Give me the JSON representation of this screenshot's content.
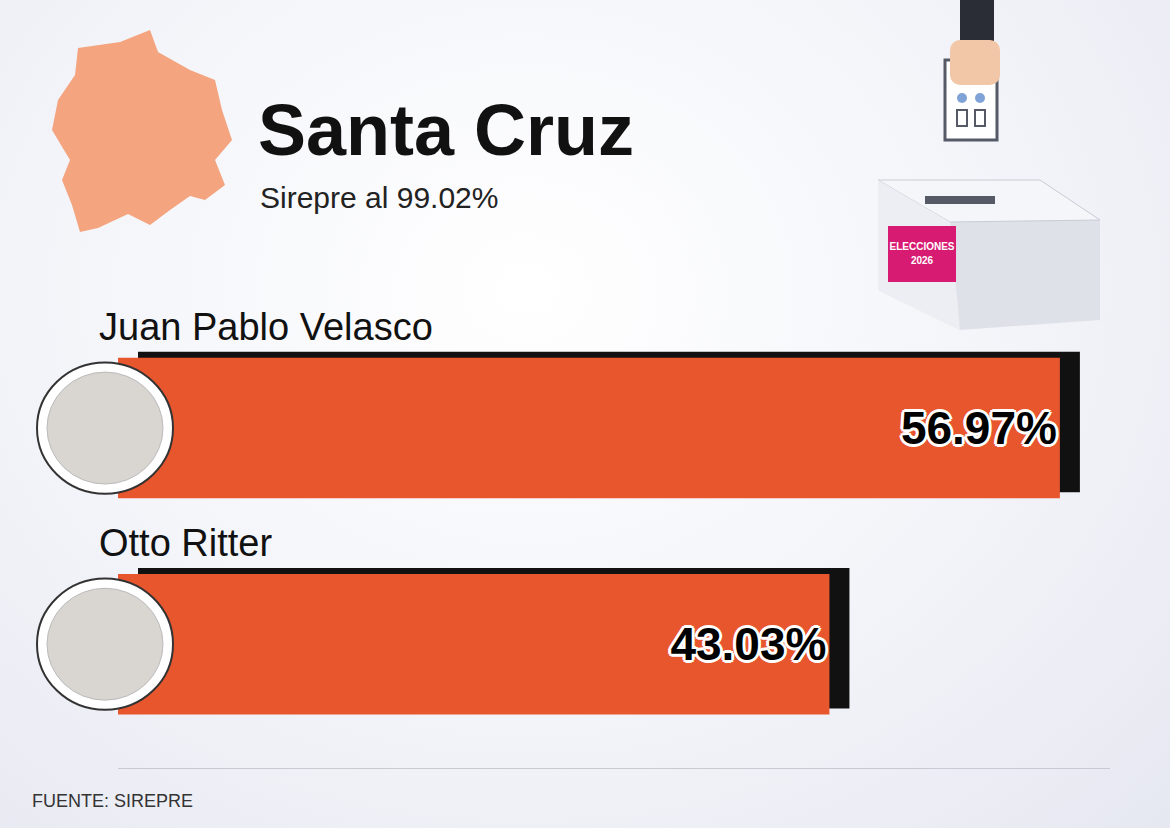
{
  "chart_data": {
    "type": "bar",
    "orientation": "horizontal",
    "title": "Santa Cruz",
    "subtitle": "Sirepre al 99.02%",
    "categories": [
      "Juan Pablo Velasco",
      "Otto Ritter"
    ],
    "values": [
      56.97,
      43.03
    ],
    "value_labels": [
      "56.97%",
      "43.03%"
    ],
    "color": "#e8562e",
    "data_labels": true,
    "tick_labels": false,
    "grid": false,
    "xlim": [
      0,
      60
    ],
    "source": "FUENTE: SIREPRE",
    "badge": "ELECCIONES 2026"
  }
}
